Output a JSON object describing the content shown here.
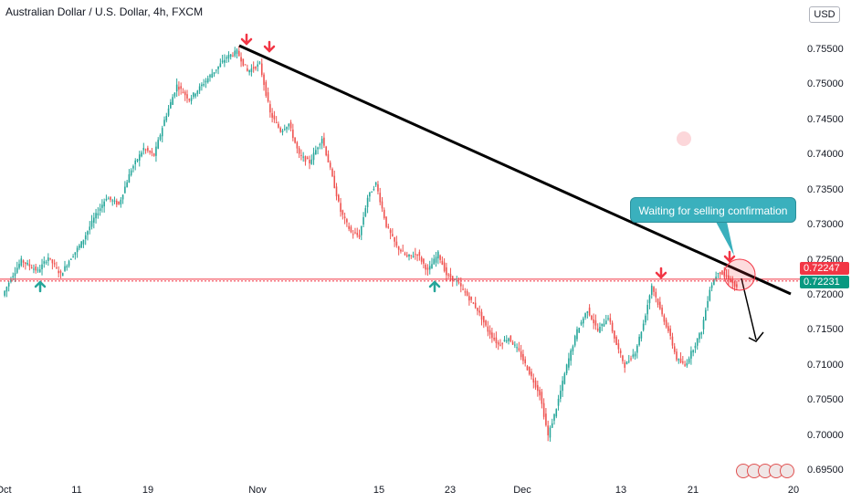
{
  "header": {
    "title": "Australian Dollar / U.S. Dollar, 4h, FXCM",
    "currency": "USD"
  },
  "annotation": {
    "callout": "Waiting for selling confirmation"
  },
  "price_tags": {
    "upper": "0.72247",
    "lower": "0.72231",
    "upper_color": "#f23645",
    "lower_color": "#089981"
  },
  "colors": {
    "up": "#26a69a",
    "down": "#ef5350",
    "trendline": "#000000",
    "support": "#f23645",
    "arrow_down": "#f23645",
    "arrow_up": "#26a69a"
  },
  "chart_data": {
    "type": "candlestick",
    "title": "Australian Dollar / U.S. Dollar, 4h, FXCM",
    "y_ticks": [
      "0.75500",
      "0.75000",
      "0.74500",
      "0.74000",
      "0.73500",
      "0.73000",
      "0.72500",
      "0.72000",
      "0.71500",
      "0.71000",
      "0.70500",
      "0.70000",
      "0.69500"
    ],
    "x_ticks": [
      "Oct",
      "11",
      "19",
      "Nov",
      "15",
      "23",
      "Dec",
      "13",
      "21",
      "20"
    ],
    "ylim": [
      0.6945,
      0.7588
    ],
    "grid": false,
    "path_waypoints": [
      [
        0,
        0.72
      ],
      [
        4,
        0.7225
      ],
      [
        9,
        0.725
      ],
      [
        17,
        0.7235
      ],
      [
        22,
        0.7255
      ],
      [
        28,
        0.723
      ],
      [
        32,
        0.725
      ],
      [
        38,
        0.7275
      ],
      [
        44,
        0.731
      ],
      [
        50,
        0.734
      ],
      [
        56,
        0.733
      ],
      [
        62,
        0.738
      ],
      [
        68,
        0.741
      ],
      [
        73,
        0.74
      ],
      [
        78,
        0.745
      ],
      [
        84,
        0.75
      ],
      [
        90,
        0.748
      ],
      [
        96,
        0.75
      ],
      [
        102,
        0.752
      ],
      [
        108,
        0.754
      ],
      [
        113,
        0.7548
      ],
      [
        118,
        0.752
      ],
      [
        124,
        0.753
      ],
      [
        129,
        0.746
      ],
      [
        134,
        0.7435
      ],
      [
        138,
        0.7445
      ],
      [
        143,
        0.74
      ],
      [
        148,
        0.739
      ],
      [
        154,
        0.7425
      ],
      [
        158,
        0.738
      ],
      [
        163,
        0.732
      ],
      [
        168,
        0.729
      ],
      [
        172,
        0.7285
      ],
      [
        176,
        0.734
      ],
      [
        180,
        0.736
      ],
      [
        185,
        0.73
      ],
      [
        190,
        0.727
      ],
      [
        195,
        0.7255
      ],
      [
        200,
        0.726
      ],
      [
        205,
        0.7235
      ],
      [
        210,
        0.726
      ],
      [
        214,
        0.723
      ],
      [
        219,
        0.722
      ],
      [
        224,
        0.72
      ],
      [
        229,
        0.718
      ],
      [
        234,
        0.715
      ],
      [
        239,
        0.713
      ],
      [
        244,
        0.714
      ],
      [
        249,
        0.712
      ],
      [
        254,
        0.709
      ],
      [
        259,
        0.706
      ],
      [
        263,
        0.7
      ],
      [
        267,
        0.704
      ],
      [
        272,
        0.71
      ],
      [
        277,
        0.715
      ],
      [
        282,
        0.718
      ],
      [
        287,
        0.715
      ],
      [
        292,
        0.717
      ],
      [
        296,
        0.713
      ],
      [
        300,
        0.71
      ],
      [
        305,
        0.712
      ],
      [
        309,
        0.716
      ],
      [
        313,
        0.7215
      ],
      [
        317,
        0.718
      ],
      [
        321,
        0.715
      ],
      [
        325,
        0.711
      ],
      [
        329,
        0.71
      ],
      [
        333,
        0.7125
      ],
      [
        337,
        0.715
      ],
      [
        341,
        0.721
      ],
      [
        345,
        0.7235
      ],
      [
        350,
        0.7225
      ],
      [
        354,
        0.721
      ]
    ],
    "trendline": [
      [
        0.7555,
        0.0
      ],
      [
        0.7205,
        1.0
      ]
    ],
    "support_level": 0.72235,
    "projection": [
      "0.72200",
      "0.71400"
    ]
  }
}
